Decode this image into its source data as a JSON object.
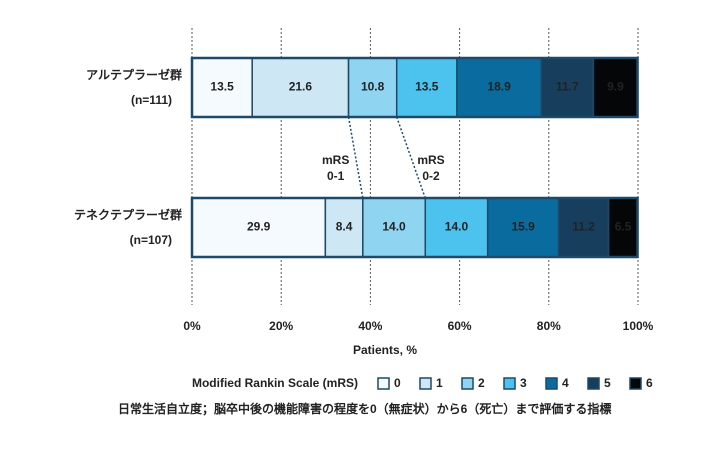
{
  "chart_data": {
    "type": "stacked-bar-horizontal",
    "categories": [
      "アルテプラーゼ群",
      "テネクテプラーゼ群"
    ],
    "group_sizes": [
      "(n=111)",
      "(n=107)"
    ],
    "series": [
      {
        "name": "0",
        "color": "#f4fafd",
        "values": [
          13.5,
          29.9
        ],
        "value_labels": [
          "13.5",
          "29.9"
        ]
      },
      {
        "name": "1",
        "color": "#cde8f4",
        "values": [
          21.6,
          8.4
        ],
        "value_labels": [
          "21.6",
          "8.4"
        ]
      },
      {
        "name": "2",
        "color": "#8fd4f0",
        "values": [
          10.8,
          14.0
        ],
        "value_labels": [
          "10.8",
          "14.0"
        ]
      },
      {
        "name": "3",
        "color": "#4cc2ee",
        "values": [
          13.5,
          14.0
        ],
        "value_labels": [
          "13.5",
          "14.0"
        ]
      },
      {
        "name": "4",
        "color": "#0a6c9e",
        "values": [
          18.9,
          15.9
        ],
        "value_labels": [
          "18.9",
          "15.9"
        ]
      },
      {
        "name": "5",
        "color": "#173f5d",
        "values": [
          11.7,
          11.2
        ],
        "value_labels": [
          "11.7",
          "11.2"
        ]
      },
      {
        "name": "6",
        "color": "#050607",
        "values": [
          9.9,
          6.5
        ],
        "value_labels": [
          "9.9",
          "6.5"
        ]
      }
    ],
    "xlim": [
      0,
      100
    ],
    "xticks": [
      {
        "value": 0,
        "label": "0%"
      },
      {
        "value": 20,
        "label": "20%"
      },
      {
        "value": 40,
        "label": "40%"
      },
      {
        "value": 60,
        "label": "60%"
      },
      {
        "value": 80,
        "label": "80%"
      },
      {
        "value": 100,
        "label": "100%"
      }
    ],
    "grid": true,
    "xlabel": "Patients, %",
    "legend_title": "Modified Rankin Scale (mRS)",
    "annotations": [
      [
        "mRS",
        "0-1"
      ],
      [
        "mRS",
        "0-2"
      ]
    ],
    "footnote": "日常生活自立度；脳卒中後の機能障害の程度を0（無症状）から6（死亡）まで評価する指標"
  }
}
